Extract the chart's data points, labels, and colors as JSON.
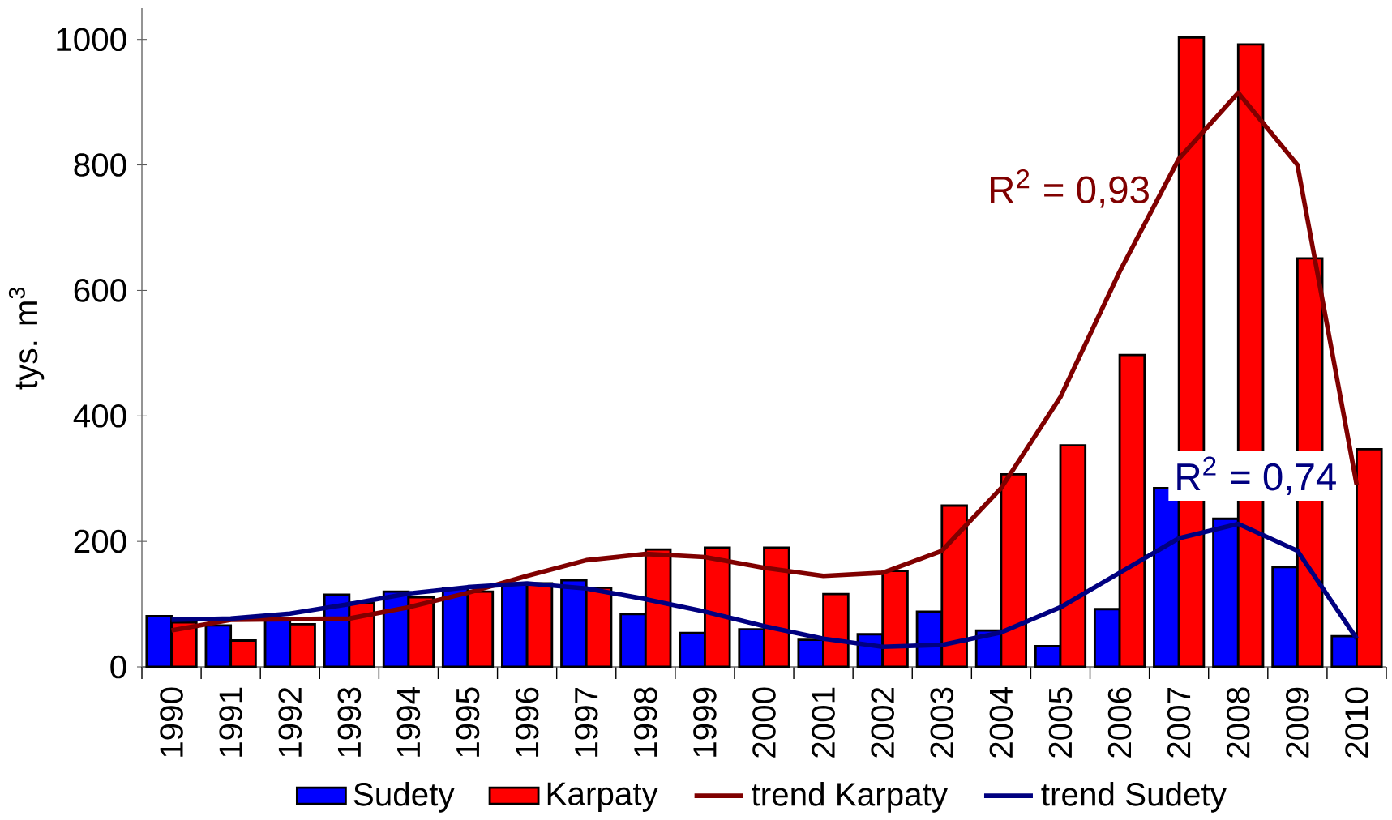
{
  "chart_data": {
    "type": "bar",
    "ylabel": "tys. m$^{3}$",
    "categories": [
      "1990",
      "1991",
      "1992",
      "1993",
      "1994",
      "1995",
      "1996",
      "1997",
      "1998",
      "1999",
      "2000",
      "2001",
      "2002",
      "2003",
      "2004",
      "2005",
      "2006",
      "2007",
      "2008",
      "2009",
      "2010"
    ],
    "series": [
      {
        "name": "Sudety",
        "color": "#0000ff",
        "values": [
          81,
          66,
          75,
          115,
          120,
          126,
          133,
          138,
          84,
          54,
          60,
          43,
          52,
          88,
          58,
          33,
          92,
          285,
          236,
          159,
          49
        ]
      },
      {
        "name": "Karpaty",
        "color": "#ff0000",
        "values": [
          71,
          42,
          68,
          102,
          111,
          120,
          133,
          126,
          187,
          190,
          190,
          116,
          153,
          257,
          307,
          353,
          497,
          1003,
          992,
          651,
          347
        ]
      },
      {
        "name": "trend Karpaty",
        "type": "line",
        "color": "#800000",
        "values": [
          58,
          75,
          76,
          77,
          95,
          118,
          145,
          170,
          180,
          175,
          158,
          145,
          150,
          185,
          285,
          430,
          630,
          810,
          915,
          800,
          290
        ]
      },
      {
        "name": "trend Sudety",
        "type": "line",
        "color": "#000080",
        "values": [
          75,
          77,
          85,
          100,
          117,
          127,
          133,
          125,
          108,
          88,
          65,
          45,
          32,
          35,
          55,
          95,
          150,
          205,
          228,
          185,
          45
        ]
      }
    ],
    "annotations": [
      "R$^{2}$ = 0,93",
      "R$^{2}$ = 0,74"
    ],
    "ylim": [
      0,
      1050
    ],
    "yticks": [
      0,
      200,
      400,
      600,
      800,
      1000
    ],
    "legend": "bottom",
    "grid": false
  }
}
